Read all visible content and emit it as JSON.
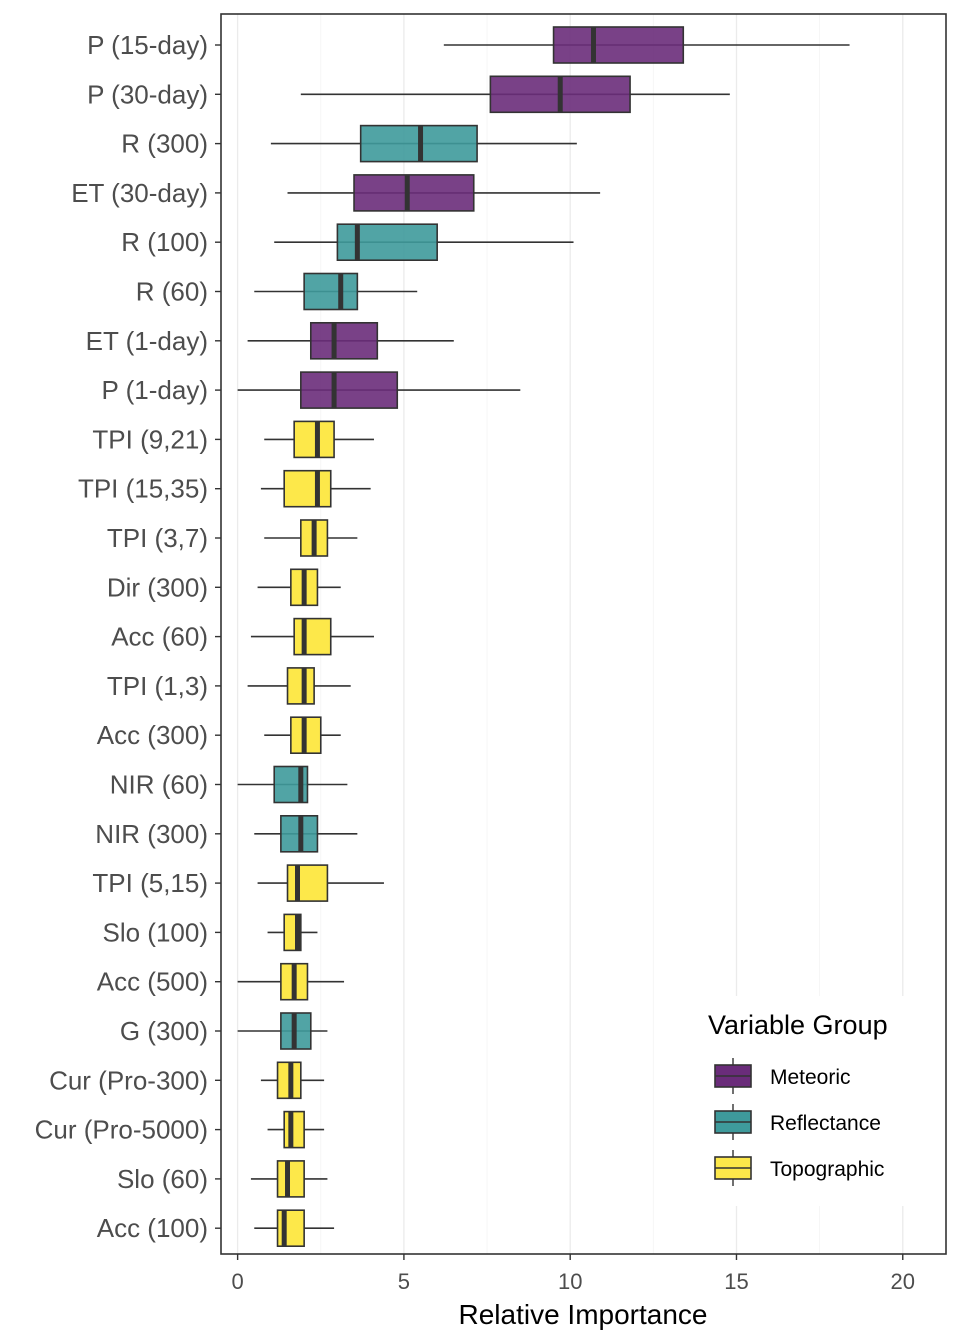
{
  "chart_data": {
    "type": "boxplot",
    "orientation": "horizontal",
    "xlabel": "Relative Importance",
    "xlim": [
      -0.5,
      21.3
    ],
    "xticks": [
      0,
      5,
      10,
      15,
      20
    ],
    "grid": true,
    "legend": {
      "title": "Variable Group",
      "placement": "bottom-right",
      "entries": [
        {
          "name": "Meteoric",
          "color": "#6a2c7a"
        },
        {
          "name": "Reflectance",
          "color": "#3e9a9b"
        },
        {
          "name": "Topographic",
          "color": "#fde84a"
        }
      ]
    },
    "rows": [
      {
        "label": "P (15-day)",
        "group": "Meteoric",
        "min": 6.2,
        "q1": 9.5,
        "median": 10.7,
        "q3": 13.4,
        "max": 18.4
      },
      {
        "label": "P (30-day)",
        "group": "Meteoric",
        "min": 1.9,
        "q1": 7.6,
        "median": 9.7,
        "q3": 11.8,
        "max": 14.8
      },
      {
        "label": "R (300)",
        "group": "Reflectance",
        "min": 1.0,
        "q1": 3.7,
        "median": 5.5,
        "q3": 7.2,
        "max": 10.2
      },
      {
        "label": "ET (30-day)",
        "group": "Meteoric",
        "min": 1.5,
        "q1": 3.5,
        "median": 5.1,
        "q3": 7.1,
        "max": 10.9
      },
      {
        "label": "R (100)",
        "group": "Reflectance",
        "min": 1.1,
        "q1": 3.0,
        "median": 3.6,
        "q3": 6.0,
        "max": 10.1
      },
      {
        "label": "R (60)",
        "group": "Reflectance",
        "min": 0.5,
        "q1": 2.0,
        "median": 3.1,
        "q3": 3.6,
        "max": 5.4
      },
      {
        "label": "ET (1-day)",
        "group": "Meteoric",
        "min": 0.3,
        "q1": 2.2,
        "median": 2.9,
        "q3": 4.2,
        "max": 6.5
      },
      {
        "label": "P (1-day)",
        "group": "Meteoric",
        "min": 0.0,
        "q1": 1.9,
        "median": 2.9,
        "q3": 4.8,
        "max": 8.5
      },
      {
        "label": "TPI (9,21)",
        "group": "Topographic",
        "min": 0.8,
        "q1": 1.7,
        "median": 2.4,
        "q3": 2.9,
        "max": 4.1
      },
      {
        "label": "TPI (15,35)",
        "group": "Topographic",
        "min": 0.7,
        "q1": 1.4,
        "median": 2.4,
        "q3": 2.8,
        "max": 4.0
      },
      {
        "label": "TPI (3,7)",
        "group": "Topographic",
        "min": 0.8,
        "q1": 1.9,
        "median": 2.3,
        "q3": 2.7,
        "max": 3.6
      },
      {
        "label": "Dir (300)",
        "group": "Topographic",
        "min": 0.6,
        "q1": 1.6,
        "median": 2.0,
        "q3": 2.4,
        "max": 3.1
      },
      {
        "label": "Acc (60)",
        "group": "Topographic",
        "min": 0.4,
        "q1": 1.7,
        "median": 2.0,
        "q3": 2.8,
        "max": 4.1
      },
      {
        "label": "TPI (1,3)",
        "group": "Topographic",
        "min": 0.3,
        "q1": 1.5,
        "median": 2.0,
        "q3": 2.3,
        "max": 3.4
      },
      {
        "label": "Acc (300)",
        "group": "Topographic",
        "min": 0.8,
        "q1": 1.6,
        "median": 2.0,
        "q3": 2.5,
        "max": 3.1
      },
      {
        "label": "NIR (60)",
        "group": "Reflectance",
        "min": 0.0,
        "q1": 1.1,
        "median": 1.9,
        "q3": 2.1,
        "max": 3.3
      },
      {
        "label": "NIR (300)",
        "group": "Reflectance",
        "min": 0.5,
        "q1": 1.3,
        "median": 1.9,
        "q3": 2.4,
        "max": 3.6
      },
      {
        "label": "TPI (5,15)",
        "group": "Topographic",
        "min": 0.6,
        "q1": 1.5,
        "median": 1.8,
        "q3": 2.7,
        "max": 4.4
      },
      {
        "label": "Slo (100)",
        "group": "Topographic",
        "min": 0.9,
        "q1": 1.4,
        "median": 1.8,
        "q3": 1.9,
        "max": 2.4
      },
      {
        "label": "Acc (500)",
        "group": "Topographic",
        "min": 0.0,
        "q1": 1.3,
        "median": 1.7,
        "q3": 2.1,
        "max": 3.2
      },
      {
        "label": "G (300)",
        "group": "Reflectance",
        "min": 0.0,
        "q1": 1.3,
        "median": 1.7,
        "q3": 2.2,
        "max": 2.7
      },
      {
        "label": "Cur (Pro-300)",
        "group": "Topographic",
        "min": 0.7,
        "q1": 1.2,
        "median": 1.6,
        "q3": 1.9,
        "max": 2.6
      },
      {
        "label": "Cur (Pro-5000)",
        "group": "Topographic",
        "min": 0.9,
        "q1": 1.4,
        "median": 1.6,
        "q3": 2.0,
        "max": 2.6
      },
      {
        "label": "Slo (60)",
        "group": "Topographic",
        "min": 0.4,
        "q1": 1.2,
        "median": 1.5,
        "q3": 2.0,
        "max": 2.7
      },
      {
        "label": "Acc (100)",
        "group": "Topographic",
        "min": 0.5,
        "q1": 1.2,
        "median": 1.4,
        "q3": 2.0,
        "max": 2.9
      }
    ]
  }
}
